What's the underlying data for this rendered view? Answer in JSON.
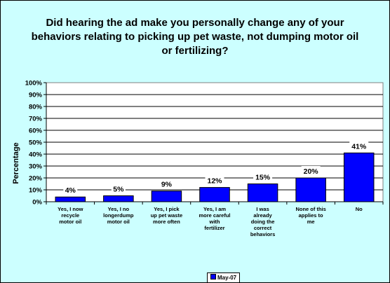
{
  "chart_data": {
    "type": "bar",
    "title": "Did hearing the ad make you personally change any of your behaviors relating to picking up pet waste, not dumping motor oil or fertilizing?",
    "ylabel": "Percentage",
    "xlabel": "",
    "ylim": [
      0,
      100
    ],
    "yticks": [
      "0%",
      "10%",
      "20%",
      "30%",
      "40%",
      "50%",
      "60%",
      "70%",
      "80%",
      "90%",
      "100%"
    ],
    "categories": [
      [
        "Yes, I now",
        "recycle",
        "motor oil"
      ],
      [
        "Yes, I no",
        "longerdump",
        "motor oil"
      ],
      [
        "Yes, I pick",
        "up pet waste",
        "more often"
      ],
      [
        "Yes, I am",
        "more careful",
        "with",
        "fertilizer"
      ],
      [
        "I was",
        "already",
        "doing the",
        "correct",
        "behaviors"
      ],
      [
        "None of this",
        "applies to",
        "me"
      ],
      [
        "No"
      ]
    ],
    "series": [
      {
        "name": "May-07",
        "values": [
          4,
          5,
          9,
          12,
          15,
          20,
          41
        ],
        "labels": [
          "4%",
          "5%",
          "9%",
          "12%",
          "15%",
          "20%",
          "41%"
        ]
      }
    ],
    "grid": true,
    "legend": "bottom",
    "colors": {
      "bar": "#0000ff",
      "plot_bg": "#ffffff",
      "background": "#ccffff"
    }
  }
}
